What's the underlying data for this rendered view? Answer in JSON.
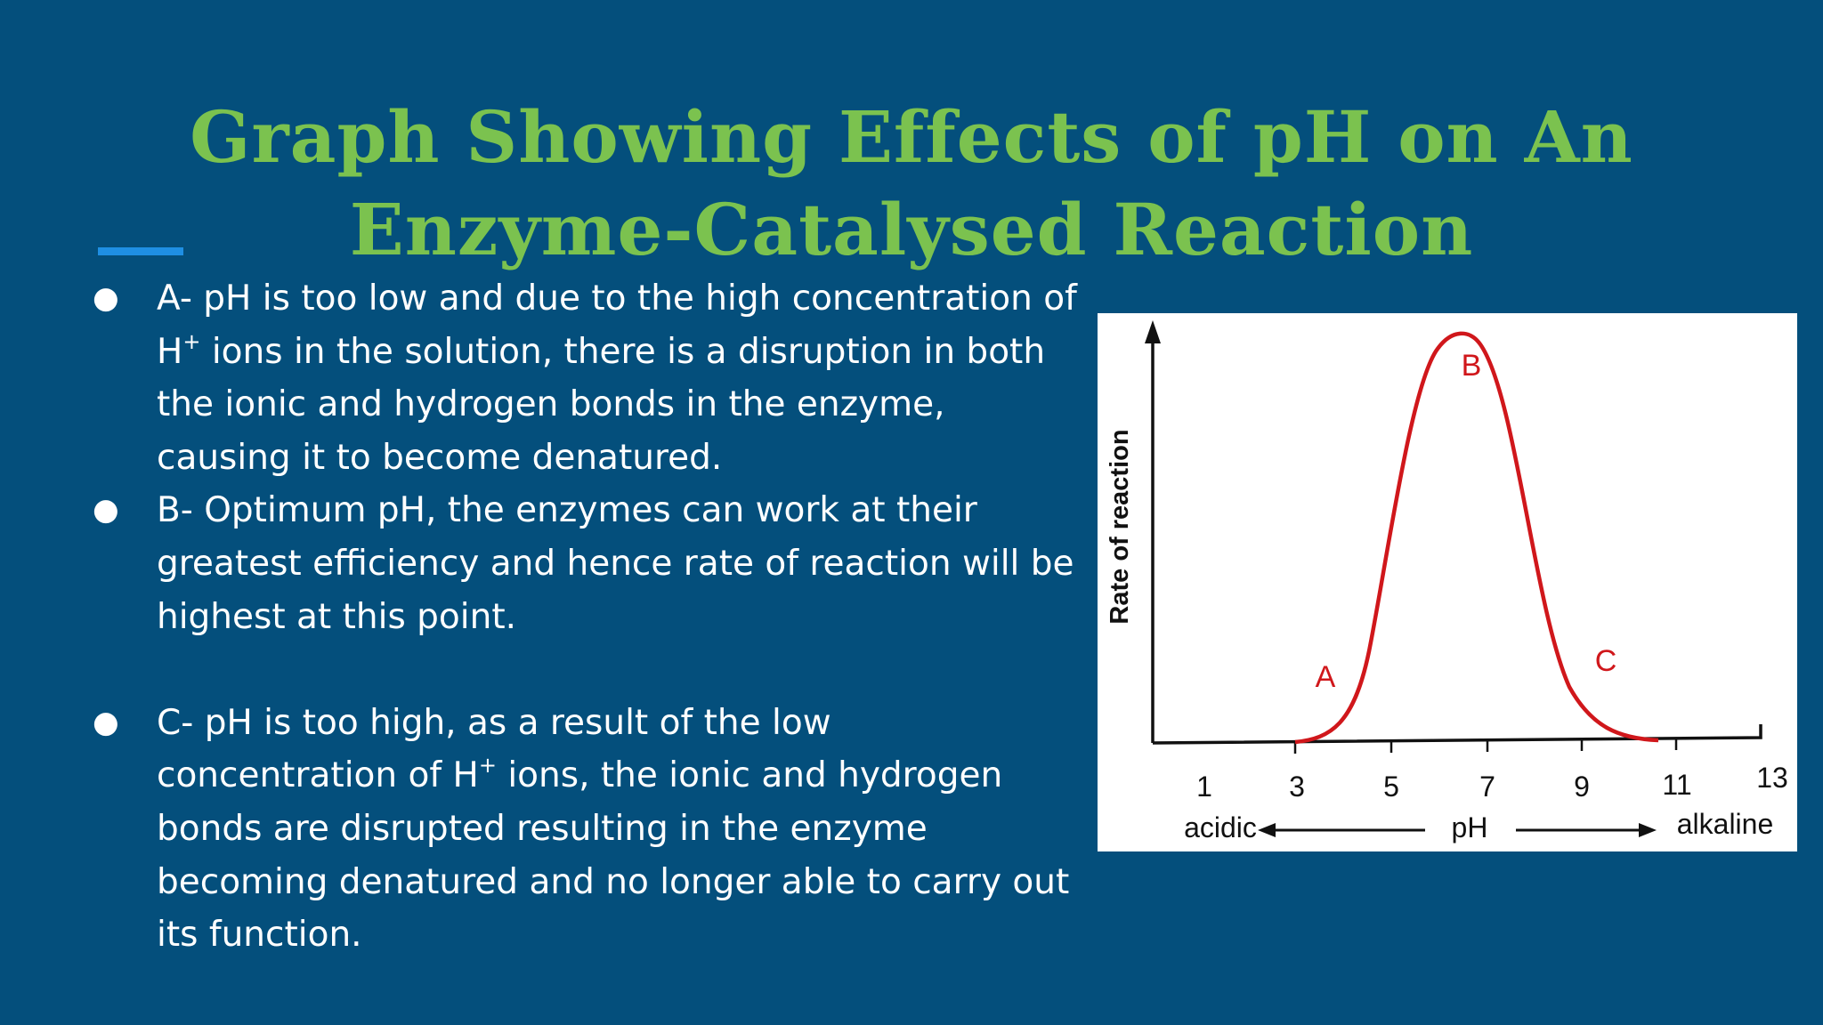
{
  "title": {
    "line1": "Graph Showing Effects of pH on An",
    "line2": "Enzyme-Catalysed Reaction"
  },
  "bullets": [
    {
      "before": "A- pH is too low and due to the high concentration of H",
      "sup": "+",
      "after": " ions in the solution, there is a disruption in both the ionic and hydrogen bonds in the enzyme, causing it to become denatured."
    },
    {
      "before": "B- Optimum pH, the enzymes can work at their greatest efficiency and hence rate of reaction will be highest at this point.",
      "sup": "",
      "after": ""
    },
    {
      "before": "C- pH is too high, as a result of the low concentration of H",
      "sup": "+",
      "after": " ions, the ionic and hydrogen bonds are disrupted resulting in the enzyme becoming denatured and no longer able to carry out its function."
    }
  ],
  "bullet_symbol": "●",
  "diagram": {
    "y_axis_label": "Rate of reaction",
    "x_axis_label": "pH",
    "left_label": "acidic",
    "right_label": "alkaline",
    "x_ticks": [
      "1",
      "3",
      "5",
      "7",
      "9",
      "11",
      "13"
    ],
    "point_labels": {
      "a": "A",
      "b": "B",
      "c": "C"
    },
    "curve_color": "#d0171b",
    "axis_color": "#111111"
  },
  "colors": {
    "background": "#044f7c",
    "title": "#7bc24f",
    "accent": "#1f8fe3",
    "text": "#ffffff"
  }
}
